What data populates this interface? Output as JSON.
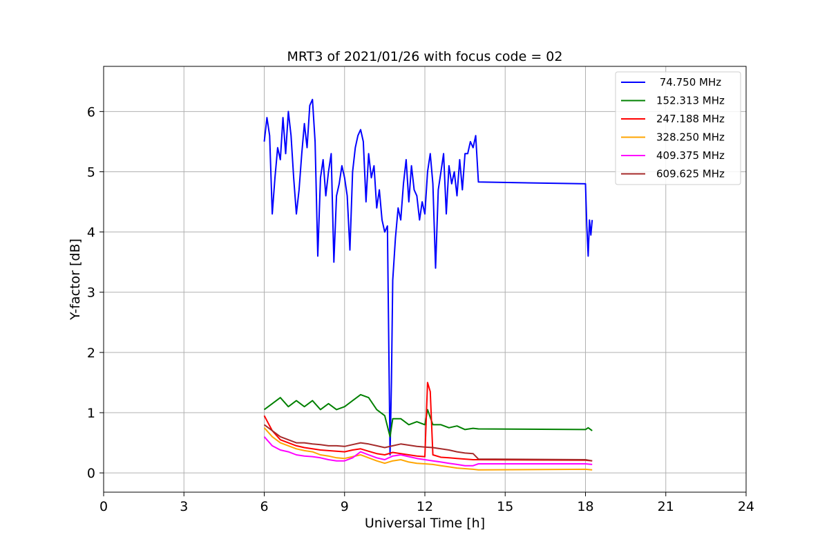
{
  "chart_data": {
    "type": "line",
    "title": "MRT3 of 2021/01/26 with focus code = 02",
    "xlabel": "Universal Time [h]",
    "ylabel": "Y-factor [dB]",
    "xlim": [
      0,
      24
    ],
    "ylim": [
      -0.32,
      6.75
    ],
    "xticks": [
      0,
      3,
      6,
      9,
      12,
      15,
      18,
      21,
      24
    ],
    "yticks": [
      0,
      1,
      2,
      3,
      4,
      5,
      6
    ],
    "grid": true,
    "legend_position": "top-right",
    "series": [
      {
        "name": " 74.750 MHz",
        "color": "#0000ff",
        "points": [
          [
            6.0,
            5.5
          ],
          [
            6.1,
            5.9
          ],
          [
            6.2,
            5.6
          ],
          [
            6.3,
            4.3
          ],
          [
            6.4,
            4.9
          ],
          [
            6.5,
            5.4
          ],
          [
            6.6,
            5.2
          ],
          [
            6.7,
            5.9
          ],
          [
            6.8,
            5.3
          ],
          [
            6.9,
            6.0
          ],
          [
            7.0,
            5.6
          ],
          [
            7.1,
            4.9
          ],
          [
            7.2,
            4.3
          ],
          [
            7.3,
            4.7
          ],
          [
            7.4,
            5.3
          ],
          [
            7.5,
            5.8
          ],
          [
            7.6,
            5.4
          ],
          [
            7.7,
            6.1
          ],
          [
            7.8,
            6.2
          ],
          [
            7.9,
            5.5
          ],
          [
            8.0,
            3.6
          ],
          [
            8.1,
            4.9
          ],
          [
            8.2,
            5.2
          ],
          [
            8.3,
            4.6
          ],
          [
            8.4,
            5.0
          ],
          [
            8.5,
            5.3
          ],
          [
            8.6,
            3.5
          ],
          [
            8.7,
            4.6
          ],
          [
            8.8,
            4.8
          ],
          [
            8.9,
            5.1
          ],
          [
            9.0,
            4.9
          ],
          [
            9.1,
            4.6
          ],
          [
            9.2,
            3.7
          ],
          [
            9.3,
            5.0
          ],
          [
            9.4,
            5.4
          ],
          [
            9.5,
            5.6
          ],
          [
            9.6,
            5.7
          ],
          [
            9.7,
            5.5
          ],
          [
            9.8,
            4.5
          ],
          [
            9.9,
            5.3
          ],
          [
            10.0,
            4.9
          ],
          [
            10.1,
            5.1
          ],
          [
            10.2,
            4.4
          ],
          [
            10.3,
            4.7
          ],
          [
            10.4,
            4.2
          ],
          [
            10.5,
            4.0
          ],
          [
            10.6,
            4.1
          ],
          [
            10.7,
            0.3
          ],
          [
            10.75,
            1.5
          ],
          [
            10.8,
            3.2
          ],
          [
            10.9,
            3.9
          ],
          [
            11.0,
            4.4
          ],
          [
            11.1,
            4.2
          ],
          [
            11.2,
            4.8
          ],
          [
            11.3,
            5.2
          ],
          [
            11.4,
            4.5
          ],
          [
            11.5,
            5.1
          ],
          [
            11.6,
            4.7
          ],
          [
            11.7,
            4.6
          ],
          [
            11.8,
            4.2
          ],
          [
            11.9,
            4.5
          ],
          [
            12.0,
            4.3
          ],
          [
            12.1,
            5.0
          ],
          [
            12.2,
            5.3
          ],
          [
            12.3,
            4.8
          ],
          [
            12.4,
            3.4
          ],
          [
            12.5,
            4.7
          ],
          [
            12.6,
            5.0
          ],
          [
            12.7,
            5.3
          ],
          [
            12.8,
            4.3
          ],
          [
            12.9,
            5.1
          ],
          [
            13.0,
            4.8
          ],
          [
            13.1,
            5.0
          ],
          [
            13.2,
            4.6
          ],
          [
            13.3,
            5.2
          ],
          [
            13.4,
            4.7
          ],
          [
            13.5,
            5.3
          ],
          [
            13.6,
            5.3
          ],
          [
            13.7,
            5.5
          ],
          [
            13.8,
            5.4
          ],
          [
            13.9,
            5.6
          ],
          [
            14.0,
            4.83
          ],
          [
            18.0,
            4.8
          ],
          [
            18.05,
            4.1
          ],
          [
            18.1,
            3.6
          ],
          [
            18.15,
            4.2
          ],
          [
            18.2,
            3.95
          ],
          [
            18.25,
            4.2
          ]
        ]
      },
      {
        "name": "152.313 MHz",
        "color": "#008000",
        "points": [
          [
            6.0,
            1.05
          ],
          [
            6.3,
            1.15
          ],
          [
            6.6,
            1.25
          ],
          [
            6.9,
            1.1
          ],
          [
            7.2,
            1.2
          ],
          [
            7.5,
            1.1
          ],
          [
            7.8,
            1.2
          ],
          [
            8.1,
            1.05
          ],
          [
            8.4,
            1.15
          ],
          [
            8.7,
            1.05
          ],
          [
            9.0,
            1.1
          ],
          [
            9.3,
            1.2
          ],
          [
            9.6,
            1.3
          ],
          [
            9.9,
            1.25
          ],
          [
            10.2,
            1.05
          ],
          [
            10.5,
            0.95
          ],
          [
            10.7,
            0.6
          ],
          [
            10.8,
            0.9
          ],
          [
            11.1,
            0.9
          ],
          [
            11.4,
            0.8
          ],
          [
            11.7,
            0.85
          ],
          [
            12.0,
            0.8
          ],
          [
            12.1,
            1.05
          ],
          [
            12.3,
            0.8
          ],
          [
            12.6,
            0.8
          ],
          [
            12.9,
            0.75
          ],
          [
            13.2,
            0.78
          ],
          [
            13.5,
            0.72
          ],
          [
            13.8,
            0.74
          ],
          [
            14.0,
            0.73
          ],
          [
            18.0,
            0.72
          ],
          [
            18.1,
            0.75
          ],
          [
            18.25,
            0.7
          ]
        ]
      },
      {
        "name": "247.188 MHz",
        "color": "#ff0000",
        "points": [
          [
            6.0,
            0.95
          ],
          [
            6.3,
            0.7
          ],
          [
            6.6,
            0.55
          ],
          [
            6.9,
            0.5
          ],
          [
            7.2,
            0.45
          ],
          [
            7.5,
            0.42
          ],
          [
            7.8,
            0.4
          ],
          [
            8.1,
            0.38
          ],
          [
            8.4,
            0.37
          ],
          [
            8.7,
            0.36
          ],
          [
            9.0,
            0.35
          ],
          [
            9.3,
            0.38
          ],
          [
            9.6,
            0.4
          ],
          [
            9.9,
            0.36
          ],
          [
            10.2,
            0.32
          ],
          [
            10.5,
            0.3
          ],
          [
            10.8,
            0.34
          ],
          [
            11.1,
            0.32
          ],
          [
            11.4,
            0.3
          ],
          [
            11.7,
            0.28
          ],
          [
            12.0,
            0.27
          ],
          [
            12.1,
            1.5
          ],
          [
            12.2,
            1.35
          ],
          [
            12.3,
            0.3
          ],
          [
            12.6,
            0.26
          ],
          [
            12.9,
            0.25
          ],
          [
            13.2,
            0.24
          ],
          [
            13.5,
            0.23
          ],
          [
            13.8,
            0.22
          ],
          [
            14.0,
            0.22
          ],
          [
            18.0,
            0.21
          ],
          [
            18.25,
            0.2
          ]
        ]
      },
      {
        "name": "328.250 MHz",
        "color": "#ffa500",
        "points": [
          [
            6.0,
            0.75
          ],
          [
            6.3,
            0.6
          ],
          [
            6.6,
            0.5
          ],
          [
            6.9,
            0.45
          ],
          [
            7.2,
            0.4
          ],
          [
            7.5,
            0.37
          ],
          [
            7.8,
            0.35
          ],
          [
            8.1,
            0.3
          ],
          [
            8.4,
            0.28
          ],
          [
            8.7,
            0.25
          ],
          [
            9.0,
            0.24
          ],
          [
            9.3,
            0.27
          ],
          [
            9.6,
            0.3
          ],
          [
            9.9,
            0.25
          ],
          [
            10.2,
            0.2
          ],
          [
            10.5,
            0.16
          ],
          [
            10.8,
            0.2
          ],
          [
            11.1,
            0.22
          ],
          [
            11.4,
            0.18
          ],
          [
            11.7,
            0.16
          ],
          [
            12.0,
            0.15
          ],
          [
            12.3,
            0.14
          ],
          [
            12.6,
            0.12
          ],
          [
            12.9,
            0.1
          ],
          [
            13.2,
            0.08
          ],
          [
            13.5,
            0.07
          ],
          [
            13.8,
            0.06
          ],
          [
            14.0,
            0.05
          ],
          [
            18.0,
            0.06
          ],
          [
            18.25,
            0.05
          ]
        ]
      },
      {
        "name": "409.375 MHz",
        "color": "#ff00ff",
        "points": [
          [
            6.0,
            0.6
          ],
          [
            6.3,
            0.45
          ],
          [
            6.6,
            0.38
          ],
          [
            6.9,
            0.35
          ],
          [
            7.2,
            0.3
          ],
          [
            7.5,
            0.28
          ],
          [
            7.8,
            0.27
          ],
          [
            8.1,
            0.25
          ],
          [
            8.4,
            0.22
          ],
          [
            8.7,
            0.2
          ],
          [
            9.0,
            0.2
          ],
          [
            9.3,
            0.25
          ],
          [
            9.6,
            0.35
          ],
          [
            9.9,
            0.3
          ],
          [
            10.2,
            0.25
          ],
          [
            10.5,
            0.22
          ],
          [
            10.8,
            0.28
          ],
          [
            11.1,
            0.3
          ],
          [
            11.4,
            0.27
          ],
          [
            11.7,
            0.24
          ],
          [
            12.0,
            0.22
          ],
          [
            12.3,
            0.2
          ],
          [
            12.6,
            0.18
          ],
          [
            12.9,
            0.16
          ],
          [
            13.2,
            0.14
          ],
          [
            13.5,
            0.12
          ],
          [
            13.8,
            0.12
          ],
          [
            14.0,
            0.15
          ],
          [
            18.0,
            0.15
          ],
          [
            18.25,
            0.14
          ]
        ]
      },
      {
        "name": "609.625 MHz",
        "color": "#a52a2a",
        "points": [
          [
            6.0,
            0.8
          ],
          [
            6.3,
            0.7
          ],
          [
            6.6,
            0.6
          ],
          [
            6.9,
            0.55
          ],
          [
            7.2,
            0.5
          ],
          [
            7.5,
            0.5
          ],
          [
            7.8,
            0.48
          ],
          [
            8.1,
            0.47
          ],
          [
            8.4,
            0.45
          ],
          [
            8.7,
            0.45
          ],
          [
            9.0,
            0.44
          ],
          [
            9.3,
            0.47
          ],
          [
            9.6,
            0.5
          ],
          [
            9.9,
            0.48
          ],
          [
            10.2,
            0.45
          ],
          [
            10.5,
            0.42
          ],
          [
            10.8,
            0.45
          ],
          [
            11.1,
            0.48
          ],
          [
            11.4,
            0.46
          ],
          [
            11.7,
            0.44
          ],
          [
            12.0,
            0.43
          ],
          [
            12.3,
            0.42
          ],
          [
            12.6,
            0.4
          ],
          [
            12.9,
            0.38
          ],
          [
            13.2,
            0.35
          ],
          [
            13.5,
            0.33
          ],
          [
            13.8,
            0.32
          ],
          [
            14.0,
            0.23
          ],
          [
            18.0,
            0.22
          ],
          [
            18.25,
            0.2
          ]
        ]
      }
    ]
  }
}
